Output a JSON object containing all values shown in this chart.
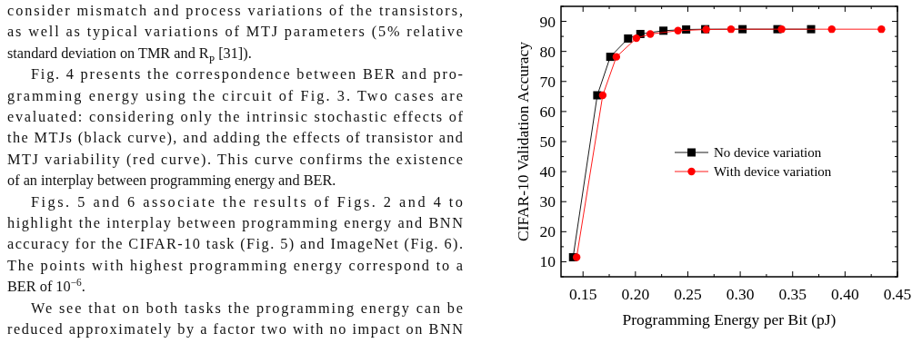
{
  "chart_data": {
    "type": "line",
    "xlabel": "Programming Energy per Bit (pJ)",
    "ylabel": "CIFAR-10 Validation Accuracy",
    "xlim": [
      0.129,
      0.45
    ],
    "xticks": [
      {
        "value": 0.15,
        "label": "0.15"
      },
      {
        "value": 0.2,
        "label": "0.20"
      },
      {
        "value": 0.25,
        "label": "0.25"
      },
      {
        "value": 0.3,
        "label": "0.30"
      },
      {
        "value": 0.35,
        "label": "0.35"
      },
      {
        "value": 0.4,
        "label": "0.40"
      },
      {
        "value": 0.45,
        "label": "0.45"
      }
    ],
    "ylim": [
      5,
      95
    ],
    "yticks": [
      10,
      20,
      30,
      40,
      50,
      60,
      70,
      80,
      90
    ],
    "grid": false,
    "legend": "right",
    "series": [
      {
        "name": "No device variation",
        "color": "#000000",
        "marker": "square",
        "x": [
          0.1405,
          0.1636,
          0.176,
          0.193,
          0.2047,
          0.2267,
          0.2484,
          0.2666,
          0.3022,
          0.3355,
          0.3676
        ],
        "values": [
          11.5,
          65.4,
          78.2,
          84.3,
          85.8,
          86.9,
          87.3,
          87.4,
          87.4,
          87.4,
          87.4
        ]
      },
      {
        "name": "With device variation",
        "color": "#ff0000",
        "marker": "circle",
        "x": [
          0.1439,
          0.1688,
          0.1818,
          0.2009,
          0.2142,
          0.2406,
          0.2675,
          0.2912,
          0.3395,
          0.3873,
          0.4347
        ],
        "values": [
          11.5,
          65.4,
          78.2,
          84.4,
          85.8,
          86.9,
          87.3,
          87.4,
          87.4,
          87.4,
          87.4
        ]
      }
    ],
    "annotations": [
      "consider mismatch and process variations of the transistors,",
      "as well as typical variations of MTJ parameters (5% relative",
      "standard deviation on TMR and R$_{P}$ [31]).",
      "Fig. 4 presents the correspondence between BER and pro-",
      "gramming energy using the circuit of Fig. 3. Two cases are",
      "evaluated: considering only the intrinsic stochastic effects of",
      "the MTJs (black curve), and adding the effects of transistor and",
      "MTJ variability (red curve). This curve confirms the existence",
      "of an interplay between programming energy and BER.",
      "Figs. 5 and 6 associate the results of Figs. 2 and 4 to",
      "highlight the interplay between programming energy and BNN",
      "accuracy for the CIFAR-10 task (Fig. 5) and ImageNet (Fig. 6).",
      "The points with highest programming energy correspond to a",
      "BER of 10$^{−6}$.",
      "We see that on both tasks the programming energy can be",
      "reduced approximately by a factor two with no impact on BNN"
    ]
  }
}
